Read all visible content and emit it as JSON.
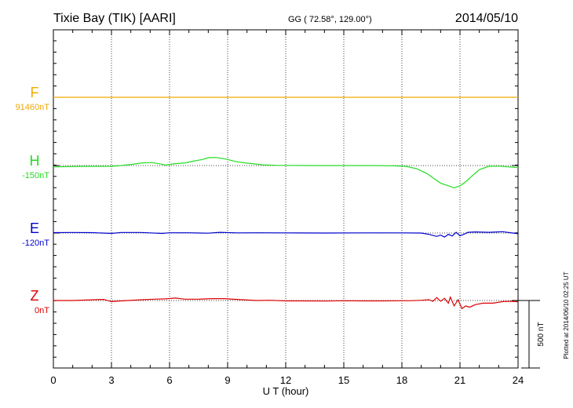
{
  "header": {
    "station": "Tixie Bay (TIK)  [AARI]",
    "coords": "GG ( 72.58°, 129.00°)",
    "date": "2014/05/10"
  },
  "footer": {
    "plotted": "Plotted at 2014/06/10 02:25 UT"
  },
  "chart_data": {
    "type": "line",
    "xlabel": "U T (hour)",
    "xlim": [
      0,
      24
    ],
    "xticks": [
      0,
      3,
      6,
      9,
      12,
      15,
      18,
      21,
      24
    ],
    "scale_bar": {
      "label": "500 nT",
      "value": 500
    },
    "colors": {
      "F": "#f2a900",
      "H": "#22dd22",
      "E": "#0000cc",
      "Z": "#dd0000"
    },
    "series": [
      {
        "name": "F",
        "baseline": "91460nT",
        "points": [
          [
            0,
            0
          ],
          [
            6,
            0
          ],
          [
            12,
            0
          ],
          [
            18,
            0
          ],
          [
            24,
            0
          ]
        ]
      },
      {
        "name": "H",
        "baseline": "-150nT",
        "points": [
          [
            0,
            -10
          ],
          [
            0.7,
            -8
          ],
          [
            1.5,
            -6
          ],
          [
            2.3,
            -6
          ],
          [
            3,
            -5
          ],
          [
            3.5,
            0
          ],
          [
            4,
            8
          ],
          [
            4.6,
            20
          ],
          [
            5.1,
            22
          ],
          [
            5.6,
            10
          ],
          [
            5.8,
            3
          ],
          [
            6.2,
            12
          ],
          [
            6.8,
            20
          ],
          [
            7.3,
            35
          ],
          [
            7.7,
            45
          ],
          [
            8,
            58
          ],
          [
            8.4,
            60
          ],
          [
            8.9,
            48
          ],
          [
            9.4,
            30
          ],
          [
            9.9,
            20
          ],
          [
            10.3,
            14
          ],
          [
            10.8,
            5
          ],
          [
            11.5,
            2
          ],
          [
            12.5,
            1
          ],
          [
            13.5,
            0
          ],
          [
            14.5,
            0
          ],
          [
            15.5,
            0
          ],
          [
            16.5,
            0
          ],
          [
            17.5,
            -2
          ],
          [
            18.2,
            -5
          ],
          [
            18.8,
            -25
          ],
          [
            19.3,
            -60
          ],
          [
            19.7,
            -100
          ],
          [
            20,
            -130
          ],
          [
            20.4,
            -150
          ],
          [
            20.7,
            -165
          ],
          [
            21,
            -150
          ],
          [
            21.3,
            -120
          ],
          [
            21.6,
            -80
          ],
          [
            22,
            -30
          ],
          [
            22.5,
            -5
          ],
          [
            23,
            -4
          ],
          [
            23.5,
            -10
          ],
          [
            24,
            -15
          ]
        ]
      },
      {
        "name": "E",
        "baseline": "-120nT",
        "points": [
          [
            0,
            3
          ],
          [
            1,
            4
          ],
          [
            2,
            3
          ],
          [
            3,
            -3
          ],
          [
            3.5,
            4
          ],
          [
            4.5,
            4
          ],
          [
            5,
            1
          ],
          [
            5.6,
            -3
          ],
          [
            6,
            2
          ],
          [
            7,
            2
          ],
          [
            8,
            -1
          ],
          [
            8.6,
            5
          ],
          [
            9.5,
            1
          ],
          [
            10.5,
            2
          ],
          [
            12,
            1
          ],
          [
            14,
            0
          ],
          [
            16,
            1
          ],
          [
            18,
            1
          ],
          [
            19,
            0
          ],
          [
            19.4,
            -10
          ],
          [
            19.8,
            -25
          ],
          [
            20,
            -15
          ],
          [
            20.2,
            -30
          ],
          [
            20.4,
            -10
          ],
          [
            20.6,
            -22
          ],
          [
            20.8,
            5
          ],
          [
            21,
            -20
          ],
          [
            21.2,
            -10
          ],
          [
            21.4,
            5
          ],
          [
            21.8,
            8
          ],
          [
            22.5,
            5
          ],
          [
            23.2,
            10
          ],
          [
            24,
            -5
          ]
        ]
      },
      {
        "name": "Z",
        "baseline": "0nT",
        "points": [
          [
            0,
            0
          ],
          [
            1,
            0
          ],
          [
            2,
            5
          ],
          [
            2.6,
            8
          ],
          [
            3,
            -8
          ],
          [
            3.5,
            -3
          ],
          [
            4.5,
            5
          ],
          [
            5.2,
            10
          ],
          [
            5.8,
            12
          ],
          [
            6.3,
            18
          ],
          [
            6.8,
            10
          ],
          [
            7.5,
            10
          ],
          [
            8.2,
            14
          ],
          [
            8.8,
            14
          ],
          [
            9.5,
            8
          ],
          [
            10.5,
            0
          ],
          [
            11.2,
            2
          ],
          [
            12,
            -3
          ],
          [
            13,
            -3
          ],
          [
            14,
            -4
          ],
          [
            15,
            -2
          ],
          [
            16,
            -3
          ],
          [
            17,
            -3
          ],
          [
            18,
            -2
          ],
          [
            18.5,
            -1
          ],
          [
            19,
            2
          ],
          [
            19.4,
            6
          ],
          [
            19.6,
            -6
          ],
          [
            19.8,
            22
          ],
          [
            20,
            -5
          ],
          [
            20.2,
            16
          ],
          [
            20.4,
            -20
          ],
          [
            20.5,
            25
          ],
          [
            20.7,
            -40
          ],
          [
            20.9,
            5
          ],
          [
            21.1,
            -60
          ],
          [
            21.3,
            -40
          ],
          [
            21.5,
            -50
          ],
          [
            21.8,
            -30
          ],
          [
            22.2,
            -20
          ],
          [
            22.7,
            -20
          ],
          [
            23.2,
            -8
          ],
          [
            23.7,
            -6
          ],
          [
            24,
            -10
          ]
        ]
      }
    ]
  }
}
